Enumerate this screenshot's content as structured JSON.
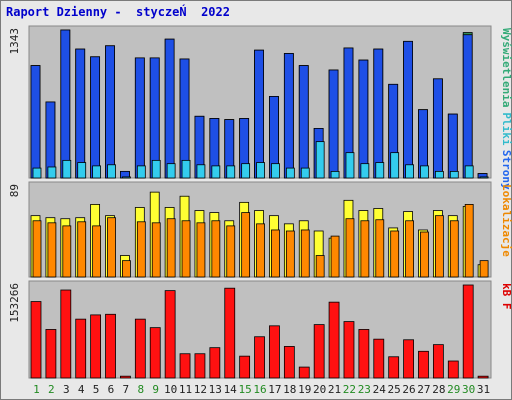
{
  "title": "Raport Dzienny -  styczeŃ  2022",
  "chart_data": [
    {
      "type": "bar",
      "panel": "top",
      "y_max_label": "1343",
      "ylim": [
        0,
        1343
      ],
      "side_labels": [
        {
          "text": "Wyświetlenia",
          "color": "#33aa77"
        },
        {
          "text": "Pliki",
          "color": "#33bbcc"
        },
        {
          "text": "Strony",
          "color": "#2266ee"
        }
      ],
      "series": [
        {
          "name": "Wyświetlenia",
          "color": "#2e8b57",
          "values": [
            1020,
            690,
            1343,
            1170,
            1100,
            1200,
            60,
            1090,
            1090,
            1260,
            1080,
            560,
            540,
            530,
            540,
            1160,
            740,
            1130,
            1020,
            450,
            980,
            1180,
            1070,
            1170,
            850,
            1240,
            620,
            900,
            580,
            1320,
            40
          ]
        },
        {
          "name": "Strony",
          "color": "#1e4fe6",
          "values": [
            1020,
            690,
            1343,
            1170,
            1100,
            1200,
            60,
            1090,
            1090,
            1260,
            1080,
            560,
            540,
            530,
            540,
            1160,
            740,
            1130,
            1020,
            450,
            980,
            1180,
            1070,
            1170,
            850,
            1240,
            620,
            900,
            580,
            1300,
            40
          ]
        },
        {
          "name": "Pliki",
          "color": "#33ccee",
          "values": [
            90,
            100,
            160,
            140,
            110,
            120,
            10,
            110,
            160,
            130,
            160,
            120,
            110,
            110,
            130,
            140,
            130,
            90,
            90,
            330,
            60,
            230,
            130,
            140,
            230,
            120,
            110,
            60,
            60,
            110,
            10
          ]
        }
      ]
    },
    {
      "type": "bar",
      "panel": "middle",
      "y_max_label": "89",
      "ylim": [
        0,
        89
      ],
      "side_labels": [
        {
          "text": "Lokalizacje",
          "color": "#ee8800"
        }
      ],
      "series": [
        {
          "name": "Goście",
          "color": "#ffff33",
          "values": [
            60,
            58,
            57,
            58,
            71,
            60,
            21,
            68,
            83,
            68,
            79,
            65,
            63,
            55,
            73,
            65,
            60,
            52,
            55,
            45,
            38,
            75,
            65,
            67,
            48,
            64,
            46,
            65,
            60,
            69,
            12
          ]
        },
        {
          "name": "Lokalizacje",
          "color": "#ff8800",
          "values": [
            55,
            53,
            50,
            54,
            50,
            58,
            16,
            54,
            53,
            57,
            55,
            53,
            55,
            50,
            63,
            52,
            46,
            45,
            46,
            21,
            40,
            57,
            55,
            56,
            45,
            55,
            44,
            60,
            55,
            71,
            16
          ]
        }
      ]
    },
    {
      "type": "bar",
      "panel": "bottom",
      "y_max_label": "153266",
      "ylim": [
        0,
        153266
      ],
      "side_labels": [
        {
          "text": "kB F",
          "color": "#dd0000"
        }
      ],
      "series": [
        {
          "name": "kB F",
          "color": "#ff1111",
          "values": [
            126000,
            80000,
            145000,
            97000,
            104000,
            105000,
            3000,
            97000,
            83000,
            144000,
            40000,
            40000,
            50000,
            148000,
            36000,
            68000,
            86000,
            52000,
            18000,
            88000,
            125000,
            93000,
            80000,
            64000,
            35000,
            63000,
            44000,
            55000,
            28000,
            153266,
            3000
          ]
        }
      ]
    }
  ],
  "days": [
    {
      "label": "1",
      "color": "#228b22"
    },
    {
      "label": "2",
      "color": "#228b22"
    },
    {
      "label": "3",
      "color": "#222222"
    },
    {
      "label": "4",
      "color": "#222222"
    },
    {
      "label": "5",
      "color": "#222222"
    },
    {
      "label": "6",
      "color": "#222222"
    },
    {
      "label": "7",
      "color": "#222222"
    },
    {
      "label": "8",
      "color": "#228b22"
    },
    {
      "label": "9",
      "color": "#228b22"
    },
    {
      "label": "10",
      "color": "#222222"
    },
    {
      "label": "11",
      "color": "#222222"
    },
    {
      "label": "12",
      "color": "#222222"
    },
    {
      "label": "13",
      "color": "#222222"
    },
    {
      "label": "14",
      "color": "#222222"
    },
    {
      "label": "15",
      "color": "#228b22"
    },
    {
      "label": "16",
      "color": "#228b22"
    },
    {
      "label": "17",
      "color": "#222222"
    },
    {
      "label": "18",
      "color": "#222222"
    },
    {
      "label": "19",
      "color": "#222222"
    },
    {
      "label": "20",
      "color": "#222222"
    },
    {
      "label": "21",
      "color": "#222222"
    },
    {
      "label": "22",
      "color": "#228b22"
    },
    {
      "label": "23",
      "color": "#228b22"
    },
    {
      "label": "24",
      "color": "#222222"
    },
    {
      "label": "25",
      "color": "#222222"
    },
    {
      "label": "26",
      "color": "#222222"
    },
    {
      "label": "27",
      "color": "#222222"
    },
    {
      "label": "28",
      "color": "#222222"
    },
    {
      "label": "29",
      "color": "#228b22"
    },
    {
      "label": "30",
      "color": "#228b22"
    },
    {
      "label": "31",
      "color": "#222222"
    }
  ],
  "colors": {
    "panel_bg": "#c0c0c0",
    "frame": "#e8e8e8",
    "title": "#0000cc"
  }
}
